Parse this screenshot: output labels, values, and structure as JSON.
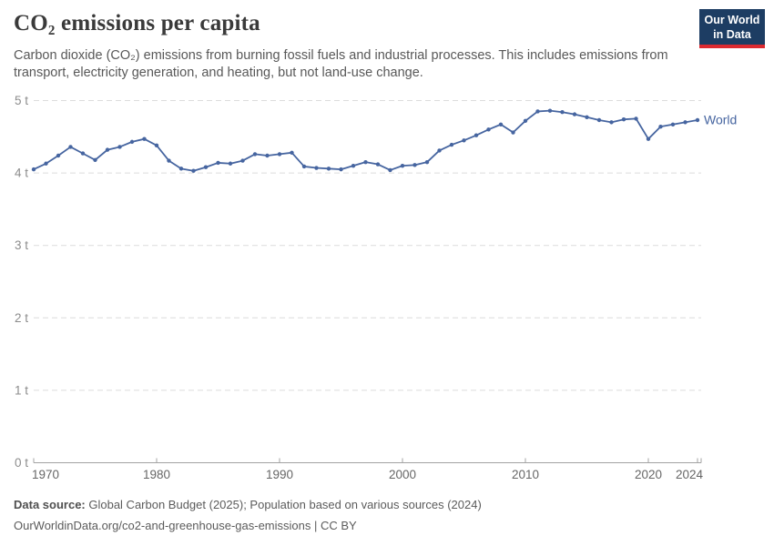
{
  "header": {
    "title": "CO₂ emissions per capita",
    "subtitle": "Carbon dioxide (CO₂) emissions from burning fossil fuels and industrial processes. This includes emissions from transport, electricity generation, and heating, but not land-use change."
  },
  "logo": {
    "line1": "Our World",
    "line2": "in Data",
    "bg_color": "#1d3d63",
    "stripe_color": "#dc2a30"
  },
  "chart_data": {
    "type": "line",
    "title": "CO₂ emissions per capita",
    "unit": "tonnes per person",
    "grid": "horizontal dashed",
    "legend_position": "end-of-line label",
    "ylim": [
      0,
      5
    ],
    "yticks": [
      {
        "value": 0,
        "label": "0 t"
      },
      {
        "value": 1,
        "label": "1 t"
      },
      {
        "value": 2,
        "label": "2 t"
      },
      {
        "value": 3,
        "label": "3 t"
      },
      {
        "value": 4,
        "label": "4 t"
      },
      {
        "value": 5,
        "label": "5 t"
      }
    ],
    "xticks": [
      {
        "year": 1970,
        "label": "1970"
      },
      {
        "year": 1980,
        "label": "1980"
      },
      {
        "year": 1990,
        "label": "1990"
      },
      {
        "year": 2000,
        "label": "2000"
      },
      {
        "year": 2010,
        "label": "2010"
      },
      {
        "year": 2020,
        "label": "2020"
      },
      {
        "year": 2024,
        "label": "2024"
      }
    ],
    "x": [
      1970,
      1971,
      1972,
      1973,
      1974,
      1975,
      1976,
      1977,
      1978,
      1979,
      1980,
      1981,
      1982,
      1983,
      1984,
      1985,
      1986,
      1987,
      1988,
      1989,
      1990,
      1991,
      1992,
      1993,
      1994,
      1995,
      1996,
      1997,
      1998,
      1999,
      2000,
      2001,
      2002,
      2003,
      2004,
      2005,
      2006,
      2007,
      2008,
      2009,
      2010,
      2011,
      2012,
      2013,
      2014,
      2015,
      2016,
      2017,
      2018,
      2019,
      2020,
      2021,
      2022,
      2023,
      2024
    ],
    "series": [
      {
        "name": "World",
        "color": "#4665a0",
        "values": [
          4.05,
          4.13,
          4.24,
          4.36,
          4.27,
          4.18,
          4.32,
          4.36,
          4.43,
          4.47,
          4.38,
          4.17,
          4.06,
          4.03,
          4.08,
          4.14,
          4.13,
          4.17,
          4.26,
          4.24,
          4.26,
          4.28,
          4.09,
          4.07,
          4.06,
          4.05,
          4.1,
          4.15,
          4.12,
          4.04,
          4.1,
          4.11,
          4.15,
          4.31,
          4.39,
          4.45,
          4.52,
          4.6,
          4.67,
          4.56,
          4.72,
          4.85,
          4.86,
          4.84,
          4.81,
          4.77,
          4.73,
          4.7,
          4.74,
          4.75,
          4.47,
          4.64,
          4.67,
          4.7,
          4.73
        ]
      }
    ]
  },
  "footer": {
    "datasource_label": "Data source:",
    "datasource_text": " Global Carbon Budget (2025); Population based on various sources (2024)",
    "link_text": "OurWorldinData.org/co2-and-greenhouse-gas-emissions | CC BY"
  }
}
